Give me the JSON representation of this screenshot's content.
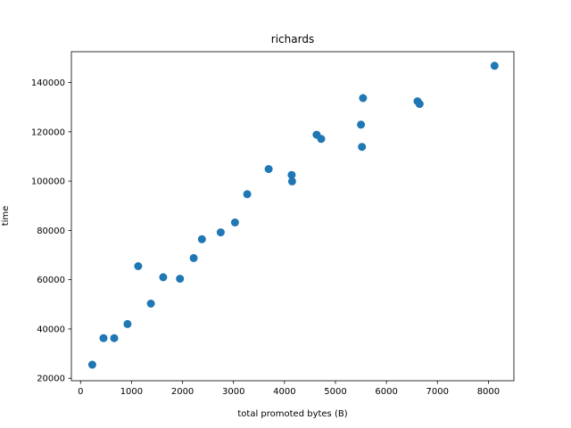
{
  "chart_data": {
    "type": "scatter",
    "title": "richards",
    "xlabel": "total promoted bytes (B)",
    "ylabel": "time",
    "xlim": [
      -180,
      8500
    ],
    "ylim": [
      19000,
      152500
    ],
    "xticks": [
      0,
      1000,
      2000,
      3000,
      4000,
      5000,
      6000,
      7000,
      8000
    ],
    "yticks": [
      20000,
      40000,
      60000,
      80000,
      100000,
      120000,
      140000
    ],
    "xtick_labels": [
      "0",
      "1000",
      "2000",
      "3000",
      "4000",
      "5000",
      "6000",
      "7000",
      "8000"
    ],
    "ytick_labels": [
      "20000",
      "40000",
      "60000",
      "80000",
      "100000",
      "120000",
      "140000"
    ],
    "grid": false,
    "legend": null,
    "marker_color": "#1f77b4",
    "points": [
      {
        "x": 230,
        "y": 25500
      },
      {
        "x": 450,
        "y": 36300
      },
      {
        "x": 660,
        "y": 36300
      },
      {
        "x": 920,
        "y": 42000
      },
      {
        "x": 1130,
        "y": 65500
      },
      {
        "x": 1380,
        "y": 50300
      },
      {
        "x": 1620,
        "y": 61000
      },
      {
        "x": 1950,
        "y": 60400
      },
      {
        "x": 2220,
        "y": 68800
      },
      {
        "x": 2380,
        "y": 76400
      },
      {
        "x": 2750,
        "y": 79200
      },
      {
        "x": 3030,
        "y": 83200
      },
      {
        "x": 3270,
        "y": 94700
      },
      {
        "x": 3690,
        "y": 104900
      },
      {
        "x": 4140,
        "y": 102500
      },
      {
        "x": 4150,
        "y": 99900
      },
      {
        "x": 4630,
        "y": 118800
      },
      {
        "x": 4720,
        "y": 117100
      },
      {
        "x": 5500,
        "y": 122900
      },
      {
        "x": 5520,
        "y": 113900
      },
      {
        "x": 5540,
        "y": 133700
      },
      {
        "x": 6610,
        "y": 132400
      },
      {
        "x": 6650,
        "y": 131300
      },
      {
        "x": 8120,
        "y": 146800
      }
    ]
  }
}
